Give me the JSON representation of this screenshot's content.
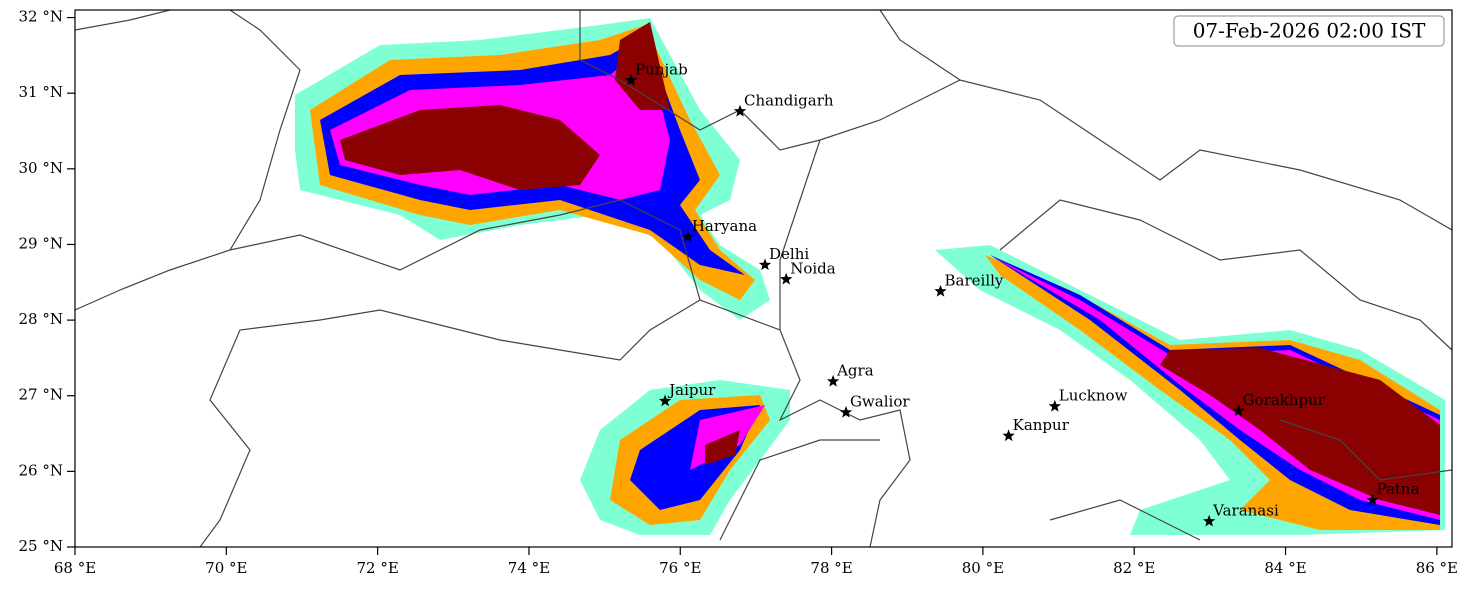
{
  "map": {
    "timestamp": "07-Feb-2026 02:00 IST",
    "xlim": [
      68,
      86.2
    ],
    "ylim": [
      25,
      32.1
    ],
    "xticks": [
      {
        "value": 68,
        "label": "68 °E"
      },
      {
        "value": 70,
        "label": "70 °E"
      },
      {
        "value": 72,
        "label": "72 °E"
      },
      {
        "value": 74,
        "label": "74 °E"
      },
      {
        "value": 76,
        "label": "76 °E"
      },
      {
        "value": 78,
        "label": "78 °E"
      },
      {
        "value": 80,
        "label": "80 °E"
      },
      {
        "value": 82,
        "label": "82 °E"
      },
      {
        "value": 84,
        "label": "84 °E"
      },
      {
        "value": 86,
        "label": "86 °E"
      }
    ],
    "yticks": [
      {
        "value": 25,
        "label": "25 °N"
      },
      {
        "value": 26,
        "label": "26 °N"
      },
      {
        "value": 27,
        "label": "27 °N"
      },
      {
        "value": 28,
        "label": "28 °N"
      },
      {
        "value": 29,
        "label": "29 °N"
      },
      {
        "value": 30,
        "label": "30 °N"
      },
      {
        "value": 31,
        "label": "31 °N"
      },
      {
        "value": 32,
        "label": "32 °N"
      }
    ],
    "cities": [
      {
        "name": "Punjab",
        "lon": 75.35,
        "lat": 31.17
      },
      {
        "name": "Chandigarh",
        "lon": 76.79,
        "lat": 30.76
      },
      {
        "name": "Haryana",
        "lon": 76.1,
        "lat": 29.1
      },
      {
        "name": "Delhi",
        "lon": 77.12,
        "lat": 28.73
      },
      {
        "name": "Noida",
        "lon": 77.4,
        "lat": 28.54
      },
      {
        "name": "Bareilly",
        "lon": 79.44,
        "lat": 28.38
      },
      {
        "name": "Agra",
        "lon": 78.02,
        "lat": 27.19
      },
      {
        "name": "Jaipur",
        "lon": 75.8,
        "lat": 26.93
      },
      {
        "name": "Gwalior",
        "lon": 78.19,
        "lat": 26.78
      },
      {
        "name": "Lucknow",
        "lon": 80.95,
        "lat": 26.86
      },
      {
        "name": "Kanpur",
        "lon": 80.34,
        "lat": 26.47
      },
      {
        "name": "Gorakhpur",
        "lon": 83.38,
        "lat": 26.8
      },
      {
        "name": "Patna",
        "lon": 85.15,
        "lat": 25.62
      },
      {
        "name": "Varanasi",
        "lon": 82.99,
        "lat": 25.34
      }
    ]
  }
}
